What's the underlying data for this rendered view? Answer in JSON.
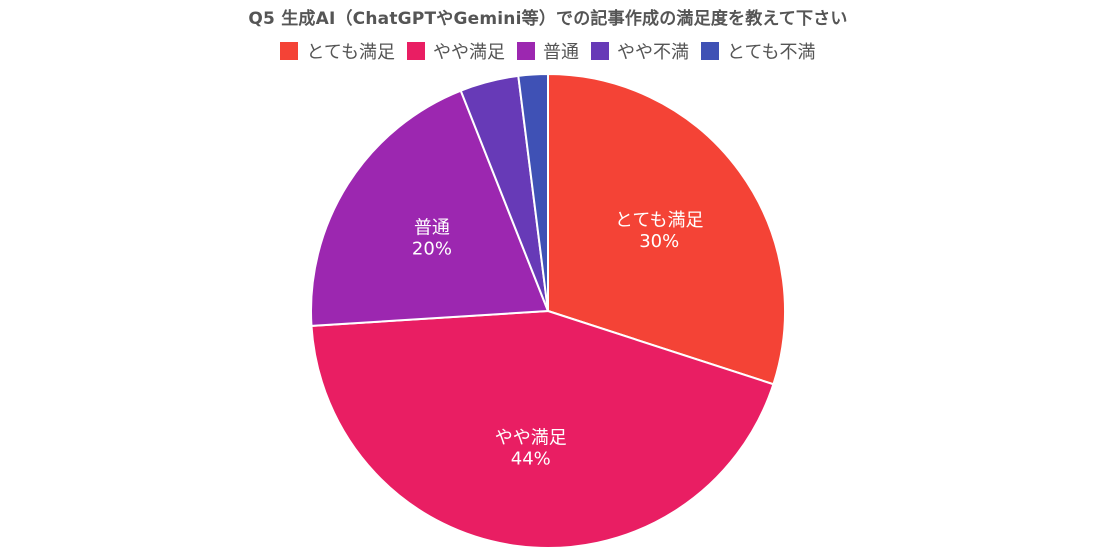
{
  "chart_data": {
    "type": "pie",
    "title": "Q5 生成AI（ChatGPTやGemini等）での記事作成の満足度を教えて下さい",
    "legend_position": "top",
    "categories": [
      "とても満足",
      "やや満足",
      "普通",
      "やや不満",
      "とても不満"
    ],
    "values": [
      30,
      44,
      20,
      4,
      2
    ],
    "data_labels": [
      "30%",
      "44%",
      "20%",
      "",
      ""
    ],
    "colors": [
      "#F44336",
      "#E91E63",
      "#9C27B0",
      "#673AB7",
      "#3F51B5"
    ]
  }
}
